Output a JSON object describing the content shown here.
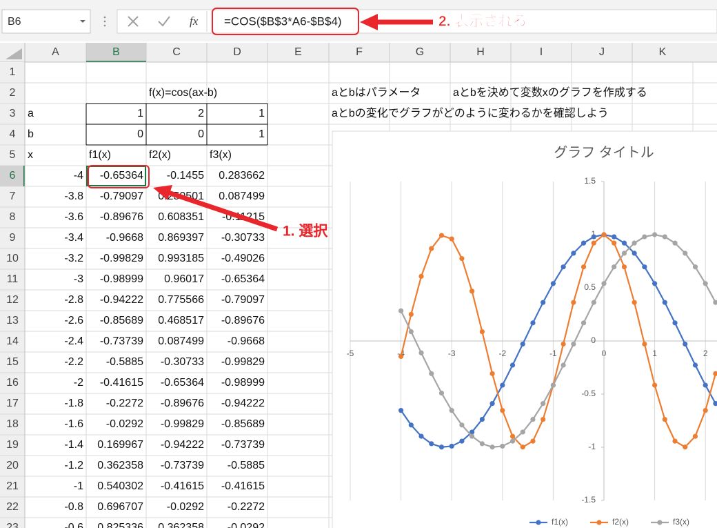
{
  "name_box": "B6",
  "fx": "fx",
  "formula": "=COS($B$3*A6-$B$4)",
  "callouts": [
    "1. 選択",
    "2. 表示される"
  ],
  "columns": [
    "A",
    "B",
    "C",
    "D",
    "E",
    "F",
    "G",
    "H",
    "I",
    "J",
    "K"
  ],
  "row_numbers": [
    1,
    2,
    3,
    4,
    5,
    6,
    7,
    8,
    9,
    10,
    11,
    12,
    13,
    14,
    15,
    16,
    17,
    18,
    19,
    20,
    21,
    22,
    23
  ],
  "sheet": {
    "C2": "f(x)=cos(ax-b)",
    "F2": "aとbはパラメータ",
    "H2": "aとbを決めて変数xのグラフを作成する",
    "F3": "aとbの変化でグラフがどのように変わるかを確認しよう",
    "params": [
      [
        "a",
        1,
        2,
        1
      ],
      [
        "b",
        0,
        0,
        1
      ]
    ],
    "header": [
      "x",
      "f1(x)",
      "f2(x)",
      "f3(x)"
    ],
    "rows": [
      [
        -4,
        -0.65364,
        -0.1455,
        0.283662
      ],
      [
        -3.8,
        -0.79097,
        0.250501,
        0.087499
      ],
      [
        -3.6,
        -0.89676,
        0.608351,
        -0.11215
      ],
      [
        -3.4,
        -0.9668,
        0.869397,
        -0.30733
      ],
      [
        -3.2,
        -0.99829,
        0.993185,
        -0.49026
      ],
      [
        -3,
        -0.98999,
        0.96017,
        -0.65364
      ],
      [
        -2.8,
        -0.94222,
        0.775566,
        -0.79097
      ],
      [
        -2.6,
        -0.85689,
        0.468517,
        -0.89676
      ],
      [
        -2.4,
        -0.73739,
        0.087499,
        -0.9668
      ],
      [
        -2.2,
        -0.5885,
        -0.30733,
        -0.99829
      ],
      [
        -2,
        -0.41615,
        -0.65364,
        -0.98999
      ],
      [
        -1.8,
        -0.2272,
        -0.89676,
        -0.94222
      ],
      [
        -1.6,
        -0.0292,
        -0.99829,
        -0.85689
      ],
      [
        -1.4,
        0.169967,
        -0.94222,
        -0.73739
      ],
      [
        -1.2,
        0.362358,
        -0.73739,
        -0.5885
      ],
      [
        -1,
        0.540302,
        -0.41615,
        -0.41615
      ],
      [
        -0.8,
        0.696707,
        -0.0292,
        -0.2272
      ],
      [
        -0.6,
        0.825336,
        0.362358,
        -0.0292
      ]
    ]
  },
  "chart_data": {
    "type": "line",
    "title": "グラフ タイトル",
    "x": [
      -4,
      -3.8,
      -3.6,
      -3.4,
      -3.2,
      -3,
      -2.8,
      -2.6,
      -2.4,
      -2.2,
      -2,
      -1.8,
      -1.6,
      -1.4,
      -1.2,
      -1,
      -0.8,
      -0.6,
      -0.4,
      -0.2,
      0,
      0.2,
      0.4,
      0.6,
      0.8,
      1,
      1.2,
      1.4,
      1.6,
      1.8,
      2,
      2.2
    ],
    "series": [
      {
        "name": "f1(x)",
        "color": "#4472c4",
        "values": [
          -0.65364,
          -0.79097,
          -0.89676,
          -0.9668,
          -0.99829,
          -0.98999,
          -0.94222,
          -0.85689,
          -0.73739,
          -0.5885,
          -0.41615,
          -0.2272,
          -0.0292,
          0.169967,
          0.362358,
          0.540302,
          0.696707,
          0.825336,
          0.921061,
          0.980067,
          1,
          0.980067,
          0.921061,
          0.825336,
          0.696707,
          0.540302,
          0.362358,
          0.169967,
          -0.0292,
          -0.2272,
          -0.41615,
          -0.5885
        ]
      },
      {
        "name": "f2(x)",
        "color": "#ed7d31",
        "values": [
          -0.1455,
          0.250501,
          0.608351,
          0.869397,
          0.993185,
          0.96017,
          0.775566,
          0.468517,
          0.087499,
          -0.30733,
          -0.65364,
          -0.89676,
          -0.99829,
          -0.94222,
          -0.73739,
          -0.41615,
          -0.0292,
          0.362358,
          0.696707,
          0.921061,
          1,
          0.921061,
          0.696707,
          0.362358,
          -0.0292,
          -0.41615,
          -0.73739,
          -0.94222,
          -0.99829,
          -0.89676,
          -0.65364,
          -0.30733
        ]
      },
      {
        "name": "f3(x)",
        "color": "#a5a5a5",
        "values": [
          0.283662,
          0.087499,
          -0.11215,
          -0.30733,
          -0.49026,
          -0.65364,
          -0.79097,
          -0.89676,
          -0.9668,
          -0.99829,
          -0.98999,
          -0.94222,
          -0.85689,
          -0.73739,
          -0.5885,
          -0.41615,
          -0.2272,
          -0.0292,
          0.169967,
          0.362358,
          0.540302,
          0.696707,
          0.825336,
          0.921061,
          0.980067,
          1,
          0.980067,
          0.921061,
          0.825336,
          0.696707,
          0.540302,
          0.362358
        ]
      }
    ],
    "xlim": [
      -5,
      5
    ],
    "xticks": [
      -5,
      -4,
      -3,
      -2,
      -1,
      0,
      1,
      2
    ],
    "ylim": [
      -1.5,
      1.5
    ],
    "yticks": [
      -1.5,
      -1,
      -0.5,
      0,
      0.5,
      1,
      1.5
    ],
    "grid": true,
    "legend": "bottom"
  }
}
